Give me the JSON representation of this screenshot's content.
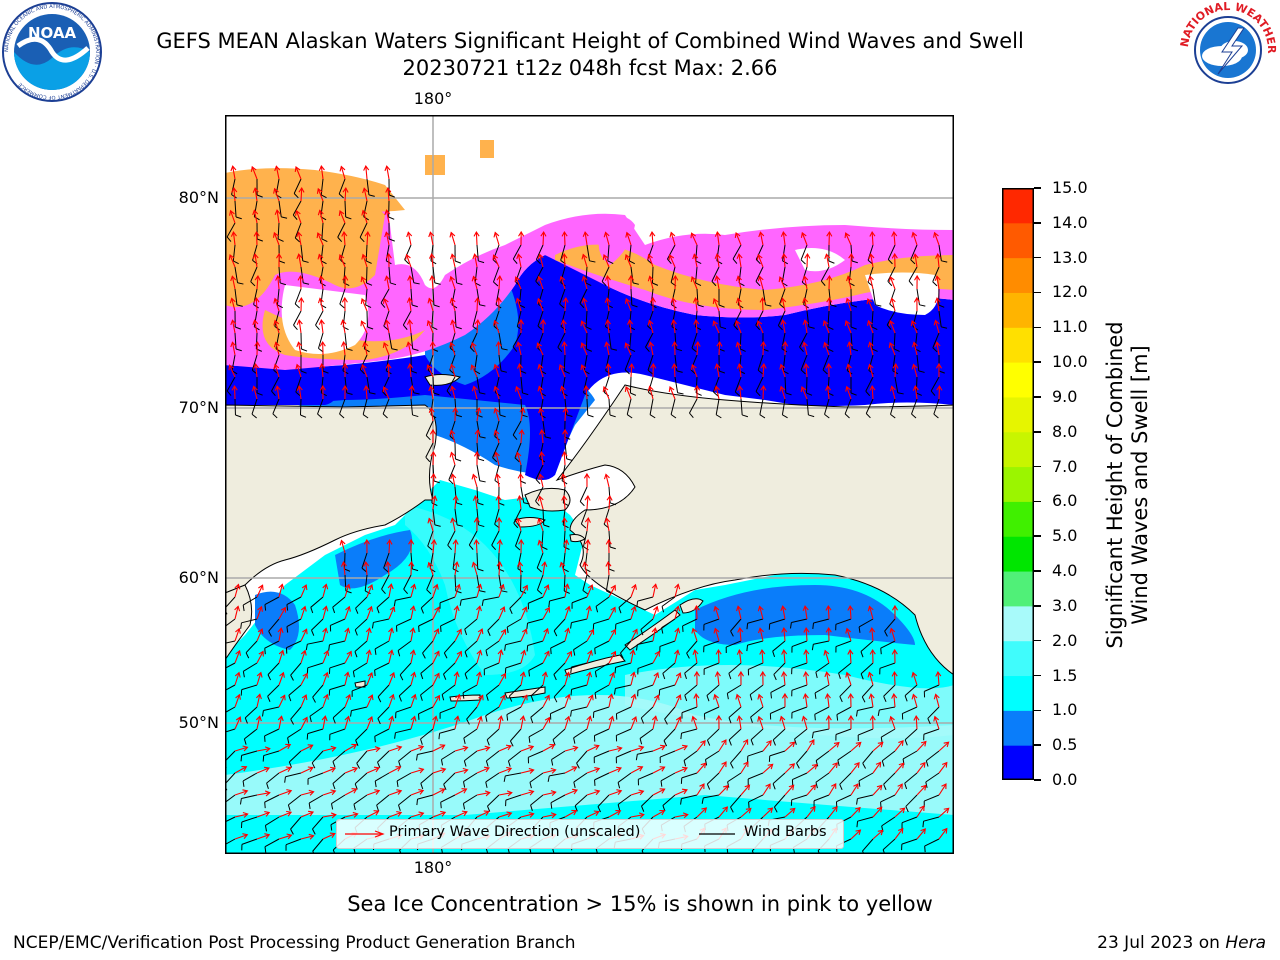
{
  "header": {
    "title_line1": "GEFS MEAN Alaskan Waters Significant Height of Combined Wind Waves and Swell",
    "title_line2": "20230721 t12z 048h fcst   Max: 2.66"
  },
  "logos": {
    "noaa_text": "NOAA",
    "noaa_ring_text": "NATIONAL OCEANIC AND ATMOSPHERIC ADMINISTRATION · U.S. DEPARTMENT OF COMMERCE",
    "nws_ring_text": "NATIONAL WEATHER SERVICE"
  },
  "map": {
    "lon_label_top": "180°",
    "lon_label_bottom": "180°",
    "lat_labels": [
      "80°N",
      "70°N",
      "60°N",
      "50°N"
    ],
    "colors": {
      "land": "#efedde",
      "deep_blue": "#0000ff",
      "mid_blue": "#0a7dfa",
      "cyan": "#00ffff",
      "light_cyan": "#40fcfc",
      "pale_cyan": "#a8fafa",
      "ice_pink": "#ff66ff",
      "ice_orange": "#ffb24d",
      "wave_arrow": "#ff0000",
      "wind_barb": "#000000",
      "grid": "#aaaaaa"
    }
  },
  "legend": {
    "wave_label": "Primary Wave Direction (unscaled)",
    "wind_label": "Wind Barbs"
  },
  "colorbar": {
    "label_line1": "Significant Height of Combined",
    "label_line2": "Wind Waves and Swell [m]",
    "ticks": [
      "0.0",
      "0.5",
      "1.0",
      "1.5",
      "2.0",
      "3.0",
      "4.0",
      "5.0",
      "6.0",
      "7.0",
      "8.0",
      "9.0",
      "10.0",
      "11.0",
      "12.0",
      "13.0",
      "14.0",
      "15.0"
    ],
    "colors": [
      "#0000ff",
      "#0a7dfa",
      "#00ffff",
      "#40fcfc",
      "#a8fafa",
      "#50f078",
      "#00e600",
      "#40f000",
      "#9bf500",
      "#c8f500",
      "#e6f500",
      "#ffff00",
      "#ffe000",
      "#ffb400",
      "#ff8c00",
      "#ff5a00",
      "#ff2800"
    ]
  },
  "notes": {
    "sea_ice": "Sea Ice Concentration > 15% is shown in pink to yellow"
  },
  "footer": {
    "left": "NCEP/EMC/Verification Post Processing Product Generation Branch",
    "date": "23 Jul 2023 on ",
    "machine": "Hera"
  }
}
